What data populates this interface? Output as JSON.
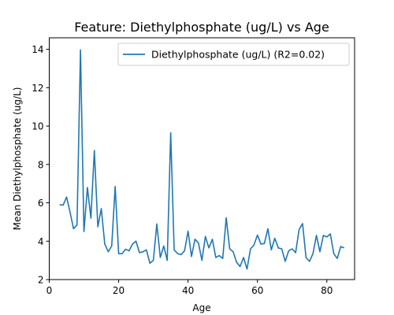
{
  "chart_data": {
    "type": "line",
    "title": "Feature: Diethylphosphate (ug/L) vs Age",
    "xlabel": "Age",
    "ylabel": "Mean Diethylphosphate (ug/L)",
    "xlim": [
      0,
      88
    ],
    "ylim": [
      2,
      14.6
    ],
    "xticks": [
      0,
      20,
      40,
      60,
      80
    ],
    "yticks": [
      2,
      4,
      6,
      8,
      10,
      12,
      14
    ],
    "grid": false,
    "legend_position": "top-right",
    "series": [
      {
        "name": "Diethylphosphate (ug/L) (R2=0.02)",
        "color": "#1f77b4",
        "x": [
          3,
          4,
          5,
          6,
          7,
          8,
          9,
          10,
          11,
          12,
          13,
          14,
          15,
          16,
          17,
          18,
          19,
          20,
          21,
          22,
          23,
          24,
          25,
          26,
          27,
          28,
          29,
          30,
          31,
          32,
          33,
          34,
          35,
          36,
          37,
          38,
          39,
          40,
          41,
          42,
          43,
          44,
          45,
          46,
          47,
          48,
          49,
          50,
          51,
          52,
          53,
          54,
          55,
          56,
          57,
          58,
          59,
          60,
          61,
          62,
          63,
          64,
          65,
          66,
          67,
          68,
          69,
          70,
          71,
          72,
          73,
          74,
          75,
          76,
          77,
          78,
          79,
          80,
          81,
          82,
          83,
          84,
          85
        ],
        "y": [
          5.9,
          5.88,
          6.3,
          5.5,
          4.65,
          4.85,
          13.97,
          4.5,
          6.8,
          5.2,
          8.73,
          4.75,
          5.7,
          3.85,
          3.45,
          3.75,
          6.85,
          3.35,
          3.35,
          3.58,
          3.5,
          3.85,
          4.0,
          3.4,
          3.45,
          3.55,
          2.85,
          3.0,
          4.9,
          3.15,
          3.75,
          3.0,
          9.65,
          3.55,
          3.35,
          3.3,
          3.5,
          4.52,
          3.2,
          4.1,
          3.9,
          3.0,
          4.25,
          3.65,
          4.1,
          3.15,
          3.25,
          3.1,
          5.22,
          3.6,
          3.45,
          2.9,
          2.68,
          3.15,
          2.55,
          3.6,
          3.8,
          4.32,
          3.85,
          3.88,
          4.65,
          3.55,
          4.15,
          3.65,
          3.6,
          2.95,
          3.5,
          3.6,
          3.4,
          4.6,
          4.92,
          3.15,
          2.95,
          3.35,
          4.3,
          3.45,
          4.3,
          4.22,
          4.38,
          3.35,
          3.1,
          3.72,
          3.65
        ]
      }
    ]
  }
}
